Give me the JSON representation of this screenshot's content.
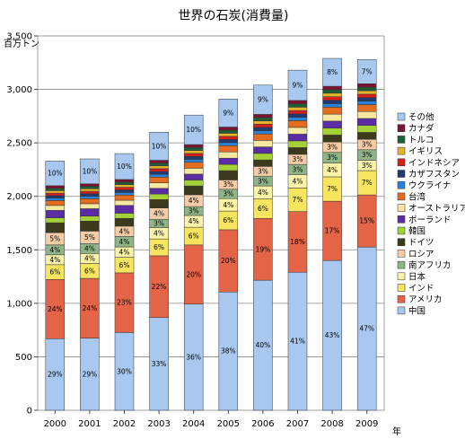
{
  "chart_data": {
    "type": "bar",
    "stacked": true,
    "title": "世界の石炭(消費量)",
    "ylabel": "百万トン",
    "xlabel": "年",
    "ylim": [
      0,
      3500
    ],
    "yticks": [
      0,
      500,
      1000,
      1500,
      2000,
      2500,
      3000,
      3500
    ],
    "ytick_labels": [
      "0",
      "500",
      "1,000",
      "1,500",
      "2,000",
      "2,500",
      "3,000",
      "3,500"
    ],
    "grid": true,
    "legend_position": "right",
    "categories": [
      "2000",
      "2001",
      "2002",
      "2003",
      "2004",
      "2005",
      "2006",
      "2007",
      "2008",
      "2009"
    ],
    "totals": [
      2330,
      2350,
      2400,
      2600,
      2760,
      2910,
      3040,
      3180,
      3290,
      3280
    ],
    "series": [
      {
        "name": "中国",
        "color": "#a8c8f0",
        "percent": [
          29,
          29,
          30,
          33,
          36,
          38,
          40,
          41,
          43,
          47
        ],
        "labels": [
          "29%",
          "29%",
          "30%",
          "33%",
          "36%",
          "38%",
          "40%",
          "41%",
          "43%",
          "47%"
        ]
      },
      {
        "name": "アメリカ",
        "color": "#e36446",
        "percent": [
          24,
          24,
          23,
          22,
          20,
          20,
          19,
          18,
          17,
          15
        ],
        "labels": [
          "24%",
          "24%",
          "23%",
          "22%",
          "20%",
          "20%",
          "19%",
          "18%",
          "17%",
          "15%"
        ]
      },
      {
        "name": "インド",
        "color": "#f7e560",
        "percent": [
          6,
          6,
          6,
          6,
          6,
          6,
          6,
          7,
          7,
          7
        ],
        "labels": [
          "6%",
          "6%",
          "6%",
          "6%",
          "6%",
          "6%",
          "6%",
          "7%",
          "7%",
          "7%"
        ]
      },
      {
        "name": "日本",
        "color": "#fbf3a8",
        "percent": [
          4,
          4,
          4,
          4,
          4,
          4,
          4,
          4,
          4,
          3
        ],
        "labels": [
          "4%",
          "4%",
          "4%",
          "4%",
          "4%",
          "4%",
          "4%",
          "4%",
          "4%",
          "3%"
        ]
      },
      {
        "name": "南アフリカ",
        "color": "#8fb487",
        "percent": [
          4,
          4,
          4,
          3,
          3,
          3,
          3,
          3,
          3,
          3
        ],
        "labels": [
          "4%",
          "4%",
          "4%",
          "3%",
          "3%",
          "3%",
          "3%",
          "3%",
          "3%",
          "3%"
        ]
      },
      {
        "name": "ロシア",
        "color": "#f5cca5",
        "percent": [
          5,
          5,
          4,
          4,
          4,
          3,
          3,
          3,
          3,
          3
        ],
        "labels": [
          "5%",
          "5%",
          "4%",
          "4%",
          "4%",
          "3%",
          "3%",
          "3%",
          "3%",
          "3%"
        ]
      },
      {
        "name": "ドイツ",
        "color": "#3b3a1d",
        "percent": [
          4,
          4,
          3,
          3,
          3,
          3,
          2,
          2,
          2,
          2
        ],
        "labels": []
      },
      {
        "name": "韓国",
        "color": "#a3d136",
        "percent": [
          2,
          2,
          2,
          2,
          2,
          2,
          2,
          2,
          2,
          2
        ],
        "labels": []
      },
      {
        "name": "ポーランド",
        "color": "#5c2ca4",
        "percent": [
          3,
          3,
          3,
          2,
          2,
          2,
          2,
          2,
          2,
          2
        ],
        "labels": []
      },
      {
        "name": "オーストラリア",
        "color": "#f7e8a0",
        "percent": [
          2,
          2,
          2,
          2,
          2,
          2,
          2,
          2,
          2,
          2
        ],
        "labels": []
      },
      {
        "name": "台湾",
        "color": "#e46c1e",
        "percent": [
          2,
          2,
          2,
          2,
          2,
          2,
          2,
          2,
          2,
          2
        ],
        "labels": []
      },
      {
        "name": "ウクライナ",
        "color": "#2a82d8",
        "percent": [
          1,
          1,
          1,
          1,
          1,
          1,
          1,
          1,
          1,
          1
        ],
        "labels": []
      },
      {
        "name": "カザフスタン",
        "color": "#213a70",
        "percent": [
          1,
          1,
          1,
          1,
          1,
          1,
          1,
          1,
          1,
          1
        ],
        "labels": []
      },
      {
        "name": "インドネシア",
        "color": "#d81e1e",
        "percent": [
          1,
          1,
          1,
          1,
          1,
          1,
          1,
          1,
          1,
          1
        ],
        "labels": []
      },
      {
        "name": "イギリス",
        "color": "#e5b32e",
        "percent": [
          1,
          1,
          1,
          1,
          1,
          1,
          1,
          1,
          1,
          1
        ],
        "labels": []
      },
      {
        "name": "トルコ",
        "color": "#1f5f38",
        "percent": [
          1,
          1,
          1,
          1,
          1,
          1,
          1,
          1,
          1,
          1
        ],
        "labels": []
      },
      {
        "name": "カナダ",
        "color": "#7e1230",
        "percent": [
          1,
          1,
          1,
          1,
          1,
          1,
          1,
          1,
          1,
          1
        ],
        "labels": []
      },
      {
        "name": "その他",
        "color": "#a8c8f0",
        "percent": [
          10,
          10,
          10,
          10,
          10,
          9,
          9,
          9,
          8,
          7
        ],
        "labels": [
          "10%",
          "10%",
          "10%",
          "10%",
          "10%",
          "9%",
          "9%",
          "9%",
          "8%",
          "7%"
        ]
      }
    ]
  }
}
